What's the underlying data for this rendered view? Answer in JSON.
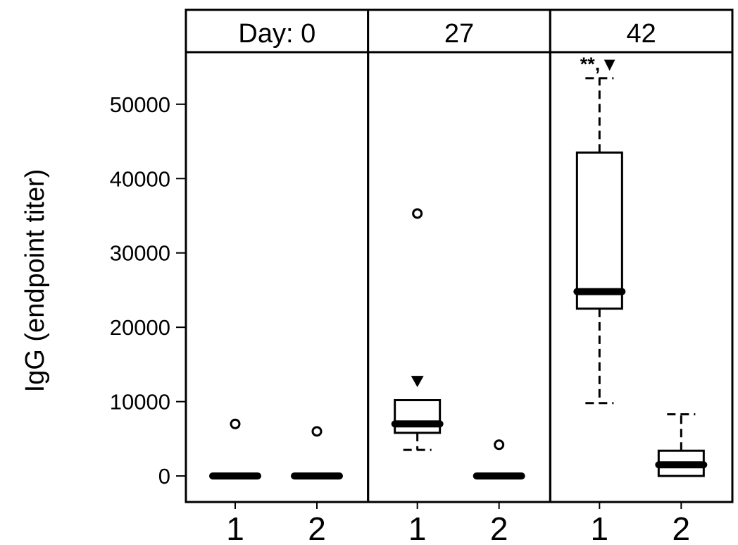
{
  "chart_data": {
    "type": "box",
    "ylabel": "IgG (endpoint titer)",
    "ylim": [
      -3500,
      57000
    ],
    "yticks": [
      0,
      10000,
      20000,
      30000,
      40000,
      50000
    ],
    "ytick_labels": [
      "0",
      "10000",
      "20000",
      "30000",
      "40000",
      "50000"
    ],
    "xtick_labels": [
      "1",
      "2"
    ],
    "panels": [
      {
        "label": "Day: 0",
        "annotation": "",
        "boxes": [
          {
            "group": "1",
            "q1": 0,
            "median": 0,
            "q3": 0,
            "whisker_low": 0,
            "whisker_high": 0,
            "outliers": [
              7000
            ],
            "marker": false
          },
          {
            "group": "2",
            "q1": 0,
            "median": 0,
            "q3": 0,
            "whisker_low": 0,
            "whisker_high": 0,
            "outliers": [
              6000
            ],
            "marker": false
          }
        ]
      },
      {
        "label": "27",
        "annotation": "",
        "boxes": [
          {
            "group": "1",
            "q1": 5800,
            "median": 7000,
            "q3": 10200,
            "whisker_low": 3500,
            "whisker_high": 10200,
            "outliers": [
              35300
            ],
            "marker": true,
            "marker_value": 12700
          },
          {
            "group": "2",
            "q1": 0,
            "median": 0,
            "q3": 0,
            "whisker_low": 0,
            "whisker_high": 0,
            "outliers": [
              4200
            ],
            "marker": false
          }
        ]
      },
      {
        "label": "42",
        "annotation": "**,▼",
        "boxes": [
          {
            "group": "1",
            "q1": 22500,
            "median": 24800,
            "q3": 43500,
            "whisker_low": 9800,
            "whisker_high": 53500,
            "outliers": [],
            "marker": false
          },
          {
            "group": "2",
            "q1": 0,
            "median": 1500,
            "q3": 3400,
            "whisker_low": 0,
            "whisker_high": 8300,
            "outliers": [],
            "marker": false
          }
        ]
      }
    ]
  }
}
